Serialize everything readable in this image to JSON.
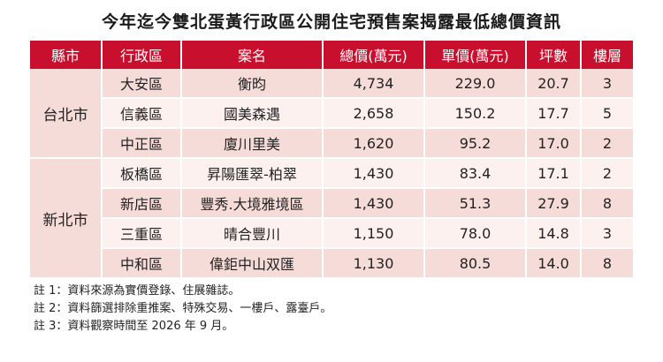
{
  "title": "今年迄今雙北蛋黃行政區公開住宅預售案揭露最低總價資訊",
  "headers": [
    "縣市",
    "行政區",
    "案名",
    "總價(萬元)",
    "單價(萬元)",
    "坪數",
    "樓層"
  ],
  "groups": [
    {
      "city": "台北市",
      "rows": [
        {
          "district": "大安區",
          "name": "衡昀",
          "total": "4,734",
          "unit": "229.0",
          "ping": "20.7",
          "floor": "3"
        },
        {
          "district": "信義區",
          "name": "國美森遇",
          "total": "2,658",
          "unit": "150.2",
          "ping": "17.7",
          "floor": "5"
        },
        {
          "district": "中正區",
          "name": "廈川里美",
          "total": "1,620",
          "unit": "95.2",
          "ping": "17.0",
          "floor": "2"
        }
      ]
    },
    {
      "city": "新北市",
      "rows": [
        {
          "district": "板橋區",
          "name": "昇陽匯翠-柏翠",
          "total": "1,430",
          "unit": "83.4",
          "ping": "17.1",
          "floor": "2"
        },
        {
          "district": "新店區",
          "name": "豐秀.大境雅境區",
          "total": "1,430",
          "unit": "51.3",
          "ping": "27.9",
          "floor": "8"
        },
        {
          "district": "三重區",
          "name": "晴合豐川",
          "total": "1,150",
          "unit": "78.0",
          "ping": "14.8",
          "floor": "3"
        },
        {
          "district": "中和區",
          "name": "偉鉅中山双匯",
          "total": "1,130",
          "unit": "80.5",
          "ping": "14.0",
          "floor": "8"
        }
      ]
    }
  ],
  "notes": [
    "註 1：資料來源為實價登錄、住展雜誌。",
    "註 2：資料篩選排除重推案、特殊交易、一樓戶、露臺戶。",
    "註 3：資料觀察時間至 2026 年 9 月。"
  ],
  "colors": {
    "header_bg": "#c8102e",
    "row_dark": "#f6dcd9",
    "row_light": "#fdf1f0"
  }
}
